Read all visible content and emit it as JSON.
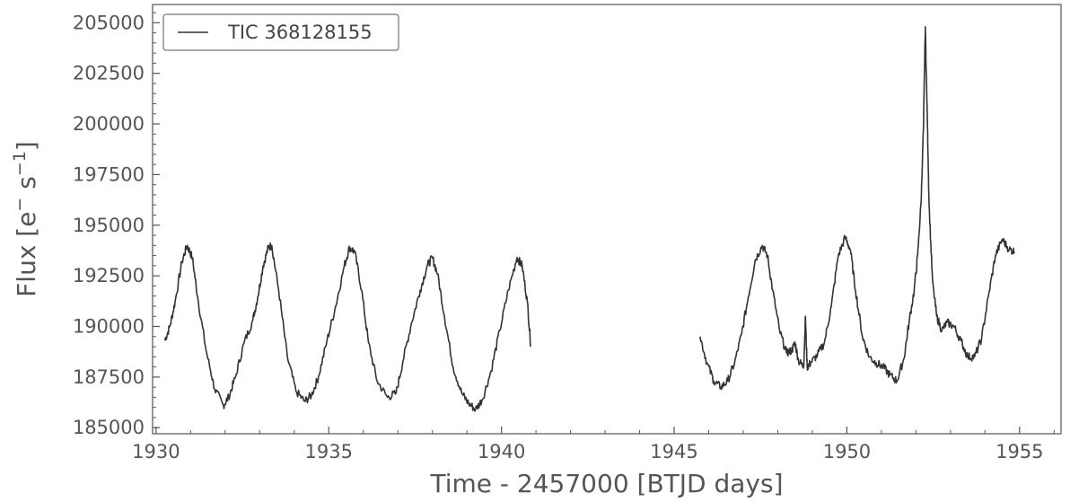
{
  "chart_data": {
    "type": "line",
    "title": "",
    "xlabel": "Time - 2457000 [BTJD days]",
    "ylabel_parts": {
      "base": "Flux [e",
      "sup1": "−",
      "mid": " s",
      "sup2": "−1",
      "end": "]"
    },
    "xlim": [
      1929.9,
      1956.2
    ],
    "ylim": [
      184700,
      205900
    ],
    "xticks": [
      1930,
      1935,
      1940,
      1945,
      1950,
      1955
    ],
    "yticks": [
      185000,
      187500,
      190000,
      192500,
      195000,
      197500,
      200000,
      202500,
      205000
    ],
    "grid": false,
    "legend": {
      "position": "top-left",
      "entries": [
        "TIC 368128155"
      ]
    },
    "colors": {
      "line": "#333333",
      "axis": "#555555",
      "text": "#555555"
    },
    "series": [
      {
        "name": "TIC 368128155",
        "segments": [
          {
            "x": [
              1930.25,
              1930.4,
              1930.55,
              1930.75,
              1930.9,
              1931.05,
              1931.2,
              1931.45,
              1931.7,
              1931.95,
              1932.1,
              1932.3,
              1932.55,
              1932.8,
              1932.95,
              1933.1,
              1933.25,
              1933.35,
              1933.55,
              1933.8,
              1934.05,
              1934.3,
              1934.5,
              1934.7,
              1934.95,
              1935.2,
              1935.45,
              1935.6,
              1935.75,
              1935.95,
              1936.15,
              1936.4,
              1936.7,
              1936.95,
              1937.15,
              1937.4,
              1937.65,
              1937.85,
              1938.0,
              1938.15,
              1938.35,
              1938.6,
              1938.85,
              1939.05,
              1939.25,
              1939.45,
              1939.7,
              1939.95,
              1940.2,
              1940.45,
              1940.6,
              1940.75,
              1940.85
            ],
            "y": [
              189300,
              190000,
              191200,
              193200,
              194000,
              193400,
              191500,
              188800,
              186900,
              186100,
              186500,
              187500,
              189200,
              190300,
              191500,
              193000,
              193900,
              194000,
              191800,
              188500,
              186800,
              186300,
              186600,
              187500,
              189300,
              191000,
              193000,
              193900,
              193700,
              191800,
              189200,
              187300,
              186500,
              186700,
              188300,
              190200,
              191800,
              193000,
              193400,
              192600,
              190500,
              188000,
              186700,
              186200,
              185900,
              186400,
              187800,
              189800,
              191800,
              193400,
              193000,
              191200,
              189000
            ]
          },
          {
            "x": [
              1945.75,
              1945.95,
              1946.15,
              1946.35,
              1946.55,
              1946.75,
              1946.95,
              1947.15,
              1947.35,
              1947.55,
              1947.7,
              1947.85,
              1948.05,
              1948.25,
              1948.4,
              1948.5,
              1948.6,
              1948.75,
              1948.8,
              1948.85,
              1948.95,
              1949.15,
              1949.35,
              1949.55,
              1949.75,
              1949.95,
              1950.1,
              1950.25,
              1950.45,
              1950.65,
              1950.85,
              1951.05,
              1951.25,
              1951.45,
              1951.65,
              1951.8,
              1951.95,
              1952.05,
              1952.15,
              1952.22,
              1952.27,
              1952.32,
              1952.38,
              1952.48,
              1952.6,
              1952.75,
              1952.9,
              1953.1,
              1953.3,
              1953.5,
              1953.7,
              1953.9,
              1954.1,
              1954.3,
              1954.5,
              1954.7,
              1954.85
            ],
            "y": [
              189500,
              188200,
              187300,
              187000,
              187300,
              188200,
              189600,
              191500,
              193300,
              194000,
              193500,
              191800,
              189800,
              188700,
              188800,
              189200,
              188300,
              188000,
              190500,
              188000,
              188200,
              188600,
              189200,
              191000,
              193500,
              194400,
              193800,
              191800,
              189500,
              188500,
              188200,
              188000,
              187600,
              187300,
              188400,
              190200,
              191800,
              193500,
              196200,
              200000,
              204800,
              201000,
              196000,
              192200,
              190500,
              189800,
              190200,
              190000,
              189300,
              188500,
              188500,
              189400,
              191500,
              193500,
              194300,
              193800,
              193700
            ]
          }
        ]
      }
    ]
  }
}
